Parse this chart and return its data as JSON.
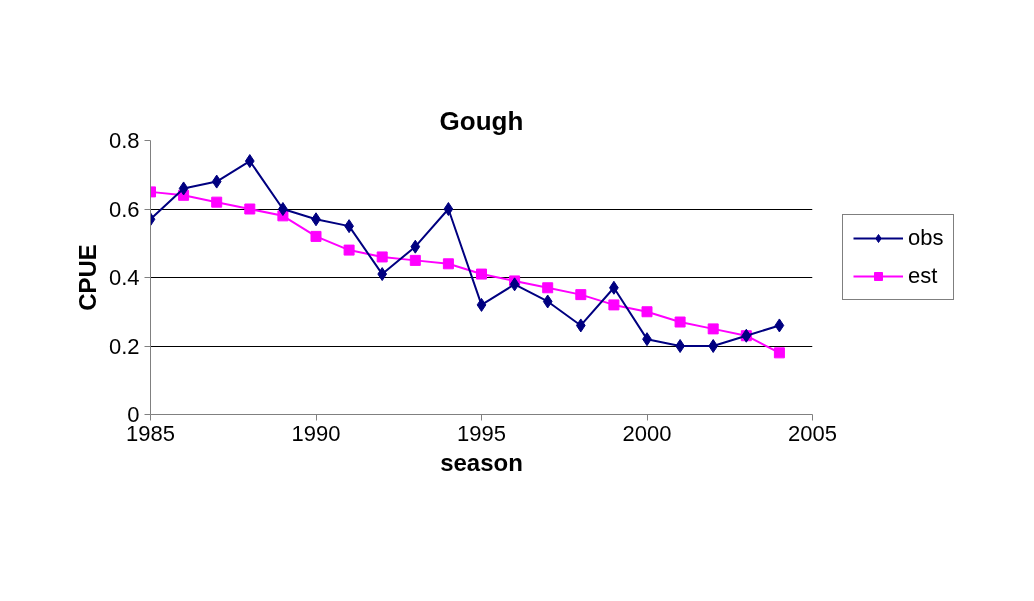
{
  "chart_data": {
    "type": "line",
    "title": "Gough",
    "xlabel": "season",
    "ylabel": "CPUE",
    "x": [
      1985,
      1986,
      1987,
      1988,
      1989,
      1990,
      1991,
      1992,
      1993,
      1994,
      1995,
      1996,
      1997,
      1998,
      1999,
      2000,
      2001,
      2002,
      2003,
      2004
    ],
    "series": [
      {
        "name": "obs",
        "color": "#000080",
        "marker": "diamond",
        "values": [
          0.57,
          0.66,
          0.68,
          0.74,
          0.6,
          0.57,
          0.55,
          0.41,
          0.49,
          0.6,
          0.32,
          0.38,
          0.33,
          0.26,
          0.37,
          0.22,
          0.2,
          0.2,
          0.23,
          0.26
        ]
      },
      {
        "name": "est",
        "color": "#ff00ff",
        "marker": "square",
        "values": [
          0.65,
          0.64,
          0.62,
          0.6,
          0.58,
          0.52,
          0.48,
          0.46,
          0.45,
          0.44,
          0.41,
          0.39,
          0.37,
          0.35,
          0.32,
          0.3,
          0.27,
          0.25,
          0.23,
          0.18
        ]
      }
    ],
    "xlim": [
      1985,
      2005
    ],
    "xticks": [
      1985,
      1990,
      1995,
      2000,
      2005
    ],
    "ylim": [
      0,
      0.8
    ],
    "yticks": [
      0,
      0.2,
      0.4,
      0.6,
      0.8
    ],
    "grid": "y",
    "legend": "right",
    "line_style": "solid"
  }
}
